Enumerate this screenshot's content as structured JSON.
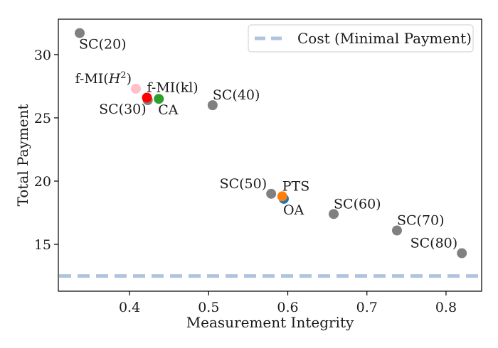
{
  "chart_data": {
    "type": "scatter",
    "title": "",
    "xlabel": "Measurement Integrity",
    "ylabel": "Total Payment",
    "xlim": [
      0.31,
      0.845
    ],
    "ylim": [
      11.3,
      32.8
    ],
    "xticks": [
      0.4,
      0.5,
      0.6,
      0.7,
      0.8
    ],
    "yticks": [
      15,
      20,
      25,
      30
    ],
    "xtick_labels": [
      "0.4",
      "0.5",
      "0.6",
      "0.7",
      "0.8"
    ],
    "ytick_labels": [
      "15",
      "20",
      "25",
      "30"
    ],
    "grid": false,
    "legend": {
      "placement": "top-right",
      "entries": [
        "Cost (Minimal Payment)"
      ]
    },
    "reference_line": {
      "name": "Cost (Minimal Payment)",
      "y": 12.5,
      "color": "#b0c4de",
      "style": "dashed"
    },
    "points": [
      {
        "name": "SC(20)",
        "label": "SC(20)",
        "x": 0.337,
        "y": 31.7,
        "color": "#808080",
        "label_pos": "below-right"
      },
      {
        "name": "SC(30)",
        "label": "SC(30)",
        "x": 0.423,
        "y": 26.4,
        "color": "#808080",
        "label_pos": "below-left"
      },
      {
        "name": "SC(40)",
        "label": "SC(40)",
        "x": 0.505,
        "y": 26.0,
        "color": "#808080",
        "label_pos": "above-right"
      },
      {
        "name": "SC(50)",
        "label": "SC(50)",
        "x": 0.579,
        "y": 19.0,
        "color": "#808080",
        "label_pos": "above-left"
      },
      {
        "name": "SC(60)",
        "label": "SC(60)",
        "x": 0.658,
        "y": 17.4,
        "color": "#808080",
        "label_pos": "above-right"
      },
      {
        "name": "SC(70)",
        "label": "SC(70)",
        "x": 0.738,
        "y": 16.1,
        "color": "#808080",
        "label_pos": "above-right"
      },
      {
        "name": "SC(80)",
        "label": "SC(80)",
        "x": 0.82,
        "y": 14.3,
        "color": "#808080",
        "label_pos": "above-left"
      },
      {
        "name": "f-MI(H^2)",
        "label": "f-MI(",
        "label_math": "H",
        "label_sup": "2",
        "label_tail": ")",
        "x": 0.408,
        "y": 27.3,
        "color": "#ffc0cb",
        "label_pos": "above-left"
      },
      {
        "name": "f-MI(kl)",
        "label": "f-MI(kl)",
        "x": 0.422,
        "y": 26.6,
        "color": "#ff0000",
        "label_pos": "above-right"
      },
      {
        "name": "CA",
        "label": "CA",
        "x": 0.437,
        "y": 26.5,
        "color": "#2ca02c",
        "label_pos": "below-right"
      },
      {
        "name": "OA",
        "label": "OA",
        "x": 0.595,
        "y": 18.6,
        "color": "#1f77b4",
        "label_pos": "below-right"
      },
      {
        "name": "PTS",
        "label": "PTS",
        "x": 0.593,
        "y": 18.8,
        "color": "#ff7f0e",
        "label_pos": "above-right"
      }
    ]
  }
}
